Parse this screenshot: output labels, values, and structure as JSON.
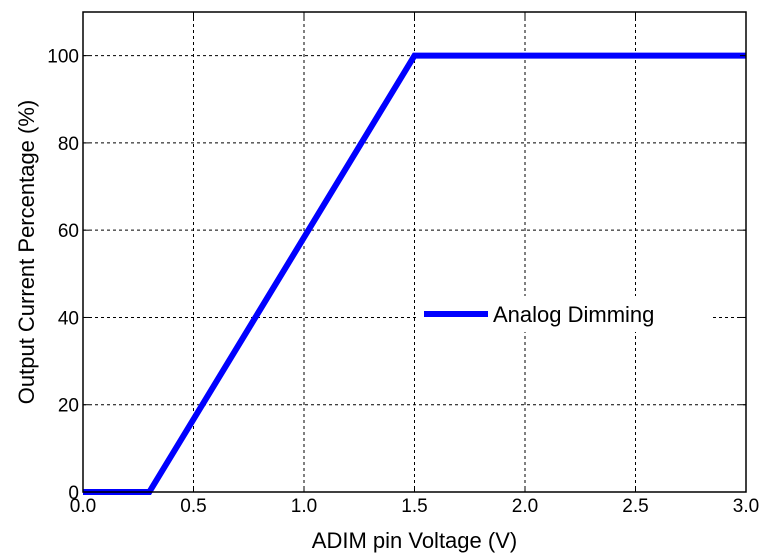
{
  "chart_data": {
    "type": "line",
    "title": "",
    "xlabel": "ADIM pin Voltage (V)",
    "ylabel": "Output Current Percentage (%)",
    "xlim": [
      0.0,
      3.0
    ],
    "ylim": [
      0,
      110
    ],
    "xticks": [
      "0.0",
      "0.5",
      "1.0",
      "1.5",
      "2.0",
      "2.5",
      "3.0"
    ],
    "yticks": [
      "0",
      "20",
      "40",
      "60",
      "80",
      "100"
    ],
    "grid": true,
    "legend_position": "center-right",
    "series": [
      {
        "name": "Analog Dimming",
        "color": "#0000ff",
        "x": [
          0.0,
          0.3,
          1.5,
          3.0
        ],
        "y": [
          0,
          0,
          100,
          100
        ]
      }
    ]
  }
}
